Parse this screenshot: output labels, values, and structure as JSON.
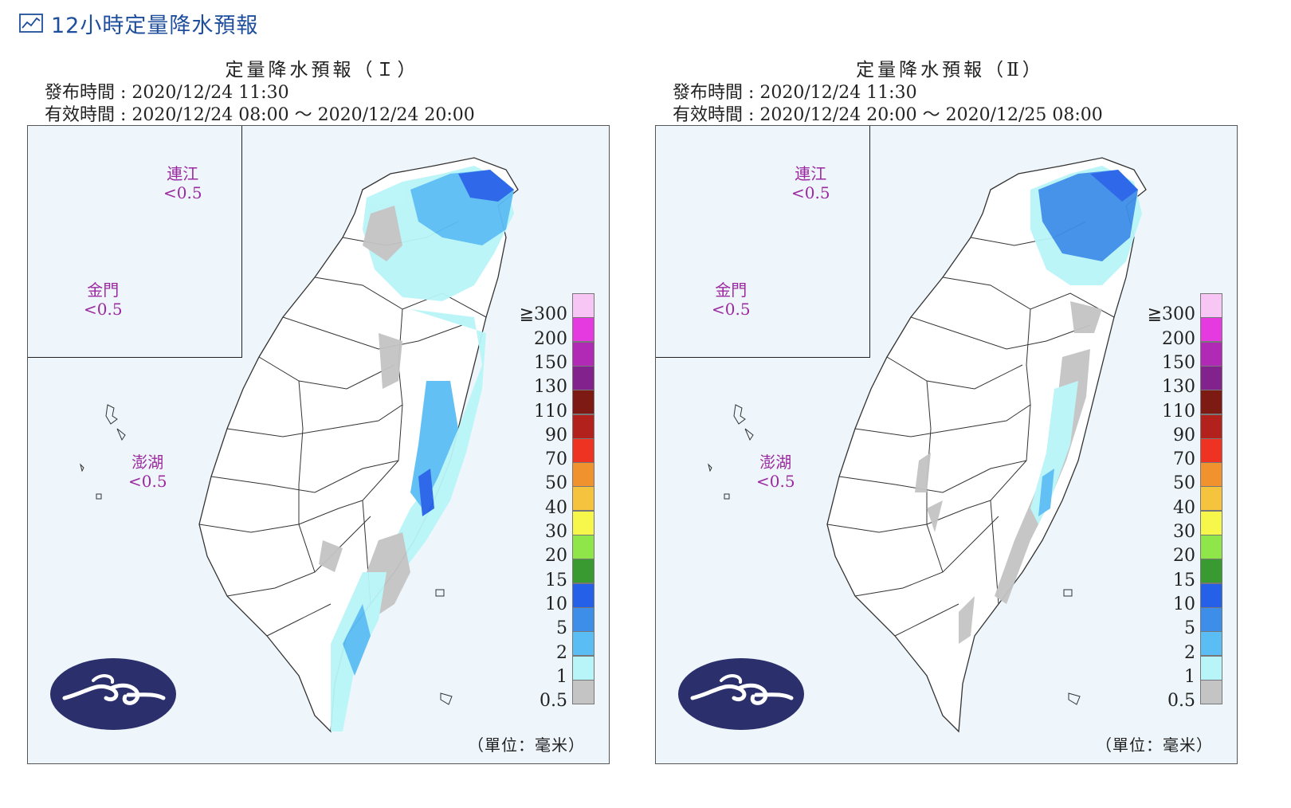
{
  "header": {
    "title": "12小時定量降水預報",
    "icon": "chart-line-icon"
  },
  "panels": [
    {
      "title": "定量降水預報（Ｉ）",
      "issue_time": "發布時間 : 2020/12/24 11:30",
      "valid_time": "有效時間 : 2020/12/24 08:00 ～ 2020/12/24 20:00",
      "lianjiang": {
        "name": "連江",
        "value": "<0.5"
      },
      "kinmen": {
        "name": "金門",
        "value": "<0.5"
      },
      "penghu": {
        "name": "澎湖",
        "value": "<0.5"
      },
      "unit": "（單位：毫米）"
    },
    {
      "title": "定量降水預報（Ⅱ）",
      "issue_time": "發布時間 : 2020/12/24 11:30",
      "valid_time": "有效時間 : 2020/12/24 20:00 ～ 2020/12/25 08:00",
      "lianjiang": {
        "name": "連江",
        "value": "<0.5"
      },
      "kinmen": {
        "name": "金門",
        "value": "<0.5"
      },
      "penghu": {
        "name": "澎湖",
        "value": "<0.5"
      },
      "unit": "（單位：毫米）"
    }
  ],
  "legend": [
    {
      "label": "≧300",
      "color": "#f7c6f5"
    },
    {
      "label": "200",
      "color": "#e43ae0"
    },
    {
      "label": "150",
      "color": "#b02ab6"
    },
    {
      "label": "130",
      "color": "#82228c"
    },
    {
      "label": "110",
      "color": "#7d1a14"
    },
    {
      "label": "90",
      "color": "#b3211d"
    },
    {
      "label": "70",
      "color": "#ee3323"
    },
    {
      "label": "50",
      "color": "#f0922e"
    },
    {
      "label": "40",
      "color": "#f5c33e"
    },
    {
      "label": "30",
      "color": "#f7f64a"
    },
    {
      "label": "20",
      "color": "#8ee648"
    },
    {
      "label": "15",
      "color": "#3a9a32"
    },
    {
      "label": "10",
      "color": "#2461e8"
    },
    {
      "label": "5",
      "color": "#3d8ee8"
    },
    {
      "label": "2",
      "color": "#5abdf4"
    },
    {
      "label": "1",
      "color": "#b8f5f8"
    },
    {
      "label": "0.5",
      "color": "#c4c4c4"
    }
  ]
}
